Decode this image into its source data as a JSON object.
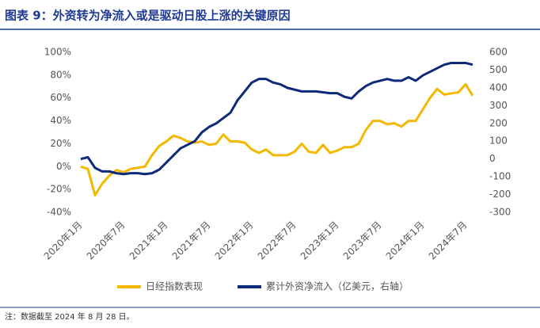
{
  "chart_data": {
    "type": "line",
    "title": "图表 9：外资转为净流入或是驱动日股上涨的关键原因",
    "note": "注：数据截至 2024 年 8 月 28 日。",
    "categories": [
      "2020年1月",
      null,
      null,
      null,
      null,
      null,
      "2020年7月",
      null,
      null,
      null,
      null,
      null,
      "2021年1月",
      null,
      null,
      null,
      null,
      null,
      "2021年7月",
      null,
      null,
      null,
      null,
      null,
      "2022年1月",
      null,
      null,
      null,
      null,
      null,
      "2022年7月",
      null,
      null,
      null,
      null,
      null,
      "2023年1月",
      null,
      null,
      null,
      null,
      null,
      "2023年7月",
      null,
      null,
      null,
      null,
      null,
      "2024年1月",
      null,
      null,
      null,
      null,
      null,
      "2024年7月",
      null
    ],
    "series": [
      {
        "name": "日经指数表现",
        "color": "#f5b800",
        "axis": "y",
        "values": [
          0,
          -2,
          -25,
          -15,
          -8,
          -3,
          -5,
          -2,
          -1,
          0,
          10,
          18,
          22,
          27,
          25,
          22,
          21,
          22,
          19,
          20,
          28,
          22,
          22,
          21,
          15,
          12,
          15,
          10,
          10,
          10,
          13,
          20,
          13,
          12,
          19,
          12,
          14,
          17,
          17,
          20,
          32,
          40,
          40,
          37,
          38,
          35,
          40,
          40,
          50,
          60,
          68,
          63,
          64,
          65,
          72,
          62
        ]
      },
      {
        "name": "累计外资净流入（亿美元，右轴）",
        "color": "#0b2a7a",
        "axis": "y2",
        "values": [
          0,
          10,
          -50,
          -70,
          -70,
          -80,
          -85,
          -80,
          -80,
          -85,
          -80,
          -60,
          -20,
          20,
          60,
          80,
          100,
          150,
          180,
          200,
          230,
          260,
          330,
          380,
          430,
          450,
          450,
          430,
          420,
          400,
          390,
          380,
          380,
          380,
          375,
          370,
          370,
          350,
          340,
          380,
          410,
          430,
          440,
          450,
          440,
          440,
          460,
          440,
          470,
          490,
          510,
          530,
          540,
          540,
          540,
          530
        ]
      }
    ],
    "ylim": [
      -40,
      100
    ],
    "yticks": [
      {
        "value": -40,
        "label": "-40%"
      },
      {
        "value": -20,
        "label": "-20%"
      },
      {
        "value": 0,
        "label": "0%"
      },
      {
        "value": 20,
        "label": "20%"
      },
      {
        "value": 40,
        "label": "40%"
      },
      {
        "value": 60,
        "label": "60%"
      },
      {
        "value": 80,
        "label": "80%"
      },
      {
        "value": 100,
        "label": "100%"
      }
    ],
    "y2lim": [
      -300,
      600
    ],
    "y2ticks": [
      -300,
      -200,
      -100,
      0,
      100,
      200,
      300,
      400,
      500,
      600
    ]
  }
}
